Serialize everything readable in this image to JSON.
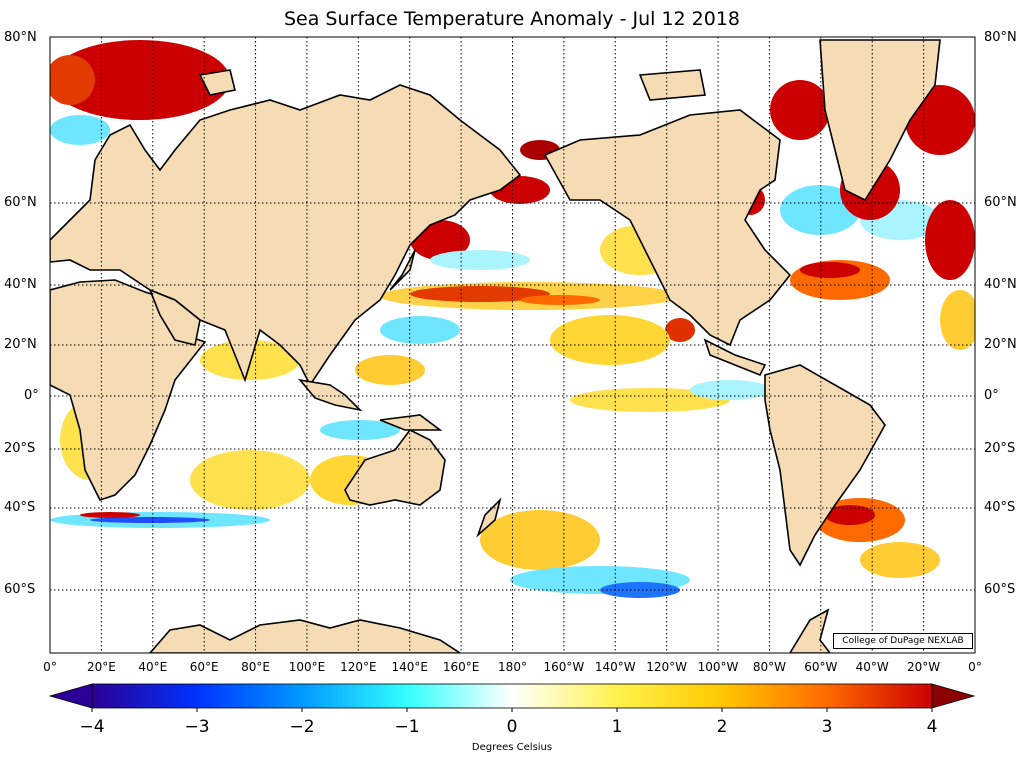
{
  "title": "Sea Surface Temperature Anomaly - Jul 12 2018",
  "credit": "College of DuPage NEXLAB",
  "colorbar": {
    "label": "Degrees Celsius",
    "min": -4,
    "max": 4,
    "ticks": [
      "−4",
      "−3",
      "−2",
      "−1",
      "0",
      "1",
      "2",
      "3",
      "4"
    ],
    "colors": [
      "#2a0096",
      "#0033ff",
      "#0099ff",
      "#33ffff",
      "#ffffff",
      "#fff24d",
      "#ffc800",
      "#ff6a00",
      "#cc0000",
      "#8c0000"
    ]
  },
  "latitude_labels": [
    "80°N",
    "60°N",
    "40°N",
    "20°N",
    "0°",
    "20°S",
    "40°S",
    "60°S"
  ],
  "longitude_labels": [
    "0°",
    "20°E",
    "40°E",
    "60°E",
    "80°E",
    "100°E",
    "120°E",
    "140°E",
    "160°E",
    "180°",
    "160°W",
    "140°W",
    "120°W",
    "100°W",
    "80°W",
    "60°W",
    "40°W",
    "20°W",
    "0°"
  ],
  "colors": {
    "land": "#f5dcb4",
    "warm": "#ffcc33",
    "hot": "#cc0000",
    "cool": "#6fe6ff",
    "cold": "#1f74ff",
    "ocean": "#ffffff"
  }
}
